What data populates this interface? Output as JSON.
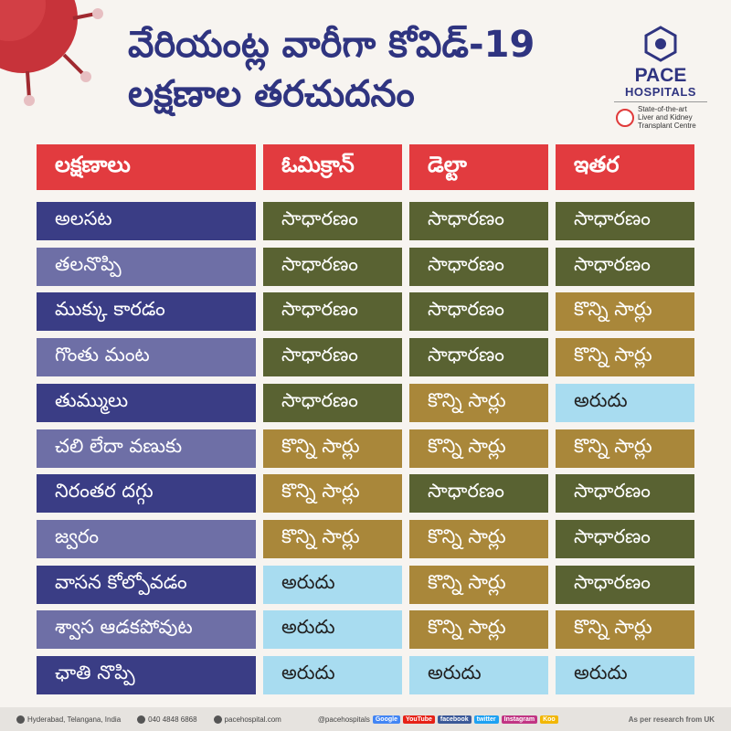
{
  "title_lines": [
    "వేరియంట్ల వారీగా కోవిడ్-19",
    "లక్షణాల తరచుదనం"
  ],
  "logo": {
    "brand": "PACE",
    "brand_sub": "HOSPITALS",
    "tagline": [
      "State-of-the-art",
      "Liver and Kidney",
      "Transplant Centre"
    ],
    "colors": {
      "primary": "#2f3480",
      "seal": "#e03a3a"
    }
  },
  "table": {
    "headers": [
      "లక్షణాలు",
      "ఓమిక్రాన్",
      "డెల్టా",
      "ఇతర"
    ],
    "rows": [
      {
        "symptom": "అలసట",
        "values": [
          "సాధారణం",
          "సాధారణం",
          "సాధారణం"
        ]
      },
      {
        "symptom": "తలనొప్పి",
        "values": [
          "సాధారణం",
          "సాధారణం",
          "సాధారణం"
        ]
      },
      {
        "symptom": "ముక్కు కారడం",
        "values": [
          "సాధారణం",
          "సాధారణం",
          "కొన్ని సార్లు"
        ]
      },
      {
        "symptom": "గొంతు మంట",
        "values": [
          "సాధారణం",
          "సాధారణం",
          "కొన్ని సార్లు"
        ]
      },
      {
        "symptom": "తుమ్ములు",
        "values": [
          "సాధారణం",
          "కొన్ని సార్లు",
          "అరుదు"
        ]
      },
      {
        "symptom": "చలి లేదా వణుకు",
        "values": [
          "కొన్ని సార్లు",
          "కొన్ని సార్లు",
          "కొన్ని సార్లు"
        ]
      },
      {
        "symptom": "నిరంతర దగ్గు",
        "values": [
          "కొన్ని సార్లు",
          "సాధారణం",
          "సాధారణం"
        ]
      },
      {
        "symptom": "జ్వరం",
        "values": [
          "కొన్ని సార్లు",
          "కొన్ని సార్లు",
          "సాధారణం"
        ]
      },
      {
        "symptom": "వాసన కోల్పోవడం",
        "values": [
          "అరుదు",
          "కొన్ని సార్లు",
          "సాధారణం"
        ]
      },
      {
        "symptom": "శ్వాస ఆడకపోవుట",
        "values": [
          "అరుదు",
          "కొన్ని సార్లు",
          "కొన్ని సార్లు"
        ]
      },
      {
        "symptom": "ఛాతి నొప్పి",
        "values": [
          "అరుదు",
          "అరుదు",
          "అరుదు"
        ]
      }
    ],
    "colors": {
      "header": "#e23b3f",
      "symptom_dark": "#3a3d85",
      "symptom_light": "#6e6fa6",
      "common": "#596232",
      "sometimes": "#a9873a",
      "rare": "#a8dcf0"
    }
  },
  "footer": {
    "location": "Hyderabad, Telangana, India",
    "phone": "040 4848 6868",
    "website": "pacehospital.com",
    "handle": "@pacehospitals",
    "social": [
      "Google",
      "YouTube",
      "facebook",
      "twitter",
      "Instagram",
      "Koo"
    ],
    "note": "As per research from UK"
  }
}
